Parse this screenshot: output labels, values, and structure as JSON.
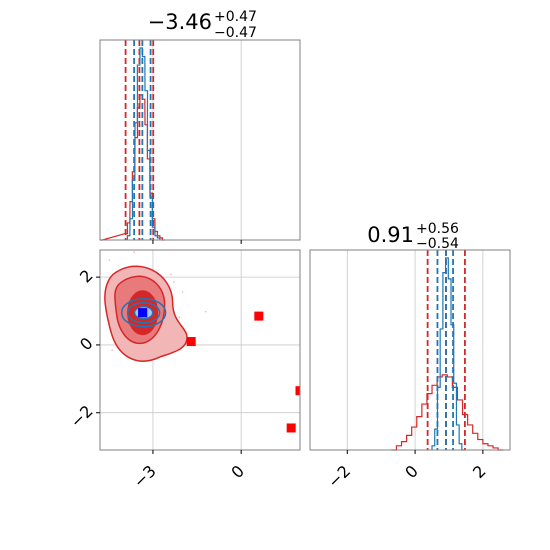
{
  "chart_data": [
    {
      "type": "histogram",
      "panel": "top-left",
      "title_main": "−3.46",
      "title_sup": "+0.47",
      "title_sub": "−0.47",
      "xlim": [
        -4.8,
        2.0
      ],
      "grid": true,
      "bin_width": 0.085,
      "series": [
        {
          "name": "",
          "color": "#d62728",
          "quantiles": [
            -3.93,
            -3.46,
            -2.99
          ],
          "bins": [
            [
              -4.8,
              0
            ],
            [
              -3.95,
              0.03
            ],
            [
              -3.87,
              0.08
            ],
            [
              -3.78,
              0.18
            ],
            [
              -3.7,
              0.32
            ],
            [
              -3.61,
              0.48
            ],
            [
              -3.53,
              0.62
            ],
            [
              -3.44,
              0.68
            ],
            [
              -3.36,
              0.66
            ],
            [
              -3.27,
              0.54
            ],
            [
              -3.19,
              0.38
            ],
            [
              -3.1,
              0.22
            ],
            [
              -3.02,
              0.1
            ],
            [
              -2.93,
              0.04
            ],
            [
              -2.85,
              0.02
            ],
            [
              -2.76,
              0.01
            ],
            [
              -2.68,
              0.0
            ]
          ]
        },
        {
          "name": "",
          "color": "#1f77b4",
          "quantiles": [
            -3.64,
            -3.36,
            -3.08
          ],
          "bins": [
            [
              -3.87,
              0.02
            ],
            [
              -3.78,
              0.1
            ],
            [
              -3.7,
              0.28
            ],
            [
              -3.61,
              0.55
            ],
            [
              -3.53,
              0.82
            ],
            [
              -3.44,
              0.9
            ],
            [
              -3.36,
              0.86
            ],
            [
              -3.27,
              0.7
            ],
            [
              -3.19,
              0.42
            ],
            [
              -3.1,
              0.2
            ],
            [
              -3.02,
              0.06
            ],
            [
              -2.93,
              0.02
            ],
            [
              -2.85,
              0.01
            ]
          ]
        }
      ]
    },
    {
      "type": "contour-scatter",
      "panel": "bottom-left",
      "xlim": [
        -4.8,
        2.0
      ],
      "ylim": [
        -3.1,
        2.8
      ],
      "xticks": [
        "−3",
        "0"
      ],
      "xtick_values": [
        -3,
        0
      ],
      "yticks": [
        "2",
        "0",
        "−2"
      ],
      "ytick_values": [
        2,
        0,
        -2
      ],
      "grid": true,
      "red_points": [
        [
          -3.35,
          0.95
        ],
        [
          -1.7,
          0.1
        ],
        [
          0.6,
          0.85
        ],
        [
          1.7,
          -2.45
        ],
        [
          2.0,
          -1.35
        ]
      ],
      "blue_point": [
        -3.35,
        0.95
      ],
      "colors": {
        "red": "#d62728",
        "red_fill": "#e87a7b",
        "red_light": "#f2b6b6",
        "blue": "#1f77b4",
        "marker_blue": "#0000ff"
      }
    },
    {
      "type": "histogram",
      "panel": "bottom-right",
      "title_main": "0.91",
      "title_sup": "+0.56",
      "title_sub": "−0.54",
      "xlim": [
        -3.1,
        2.8
      ],
      "xticks": [
        "−2",
        "0",
        "2"
      ],
      "xtick_values": [
        -2,
        0,
        2
      ],
      "grid": true,
      "series": [
        {
          "name": "",
          "color": "#d62728",
          "quantiles": [
            0.37,
            0.91,
            1.47
          ],
          "bins": [
            [
              -0.7,
              0.0
            ],
            [
              -0.55,
              0.02
            ],
            [
              -0.4,
              0.04
            ],
            [
              -0.25,
              0.07
            ],
            [
              -0.1,
              0.11
            ],
            [
              0.05,
              0.16
            ],
            [
              0.2,
              0.22
            ],
            [
              0.35,
              0.27
            ],
            [
              0.5,
              0.31
            ],
            [
              0.65,
              0.35
            ],
            [
              0.8,
              0.36
            ],
            [
              0.95,
              0.35
            ],
            [
              1.1,
              0.3
            ],
            [
              1.25,
              0.24
            ],
            [
              1.4,
              0.17
            ],
            [
              1.55,
              0.12
            ],
            [
              1.7,
              0.08
            ],
            [
              1.85,
              0.05
            ],
            [
              2.0,
              0.03
            ],
            [
              2.15,
              0.02
            ],
            [
              2.3,
              0.01
            ],
            [
              2.45,
              0.0
            ]
          ]
        },
        {
          "name": "",
          "color": "#1f77b4",
          "quantiles": [
            0.66,
            0.91,
            1.12
          ],
          "bins": [
            [
              0.5,
              0.02
            ],
            [
              0.58,
              0.1
            ],
            [
              0.66,
              0.3
            ],
            [
              0.74,
              0.58
            ],
            [
              0.82,
              0.85
            ],
            [
              0.9,
              0.92
            ],
            [
              0.98,
              0.82
            ],
            [
              1.06,
              0.6
            ],
            [
              1.14,
              0.32
            ],
            [
              1.22,
              0.12
            ],
            [
              1.3,
              0.03
            ],
            [
              1.38,
              0.0
            ]
          ]
        }
      ]
    }
  ]
}
